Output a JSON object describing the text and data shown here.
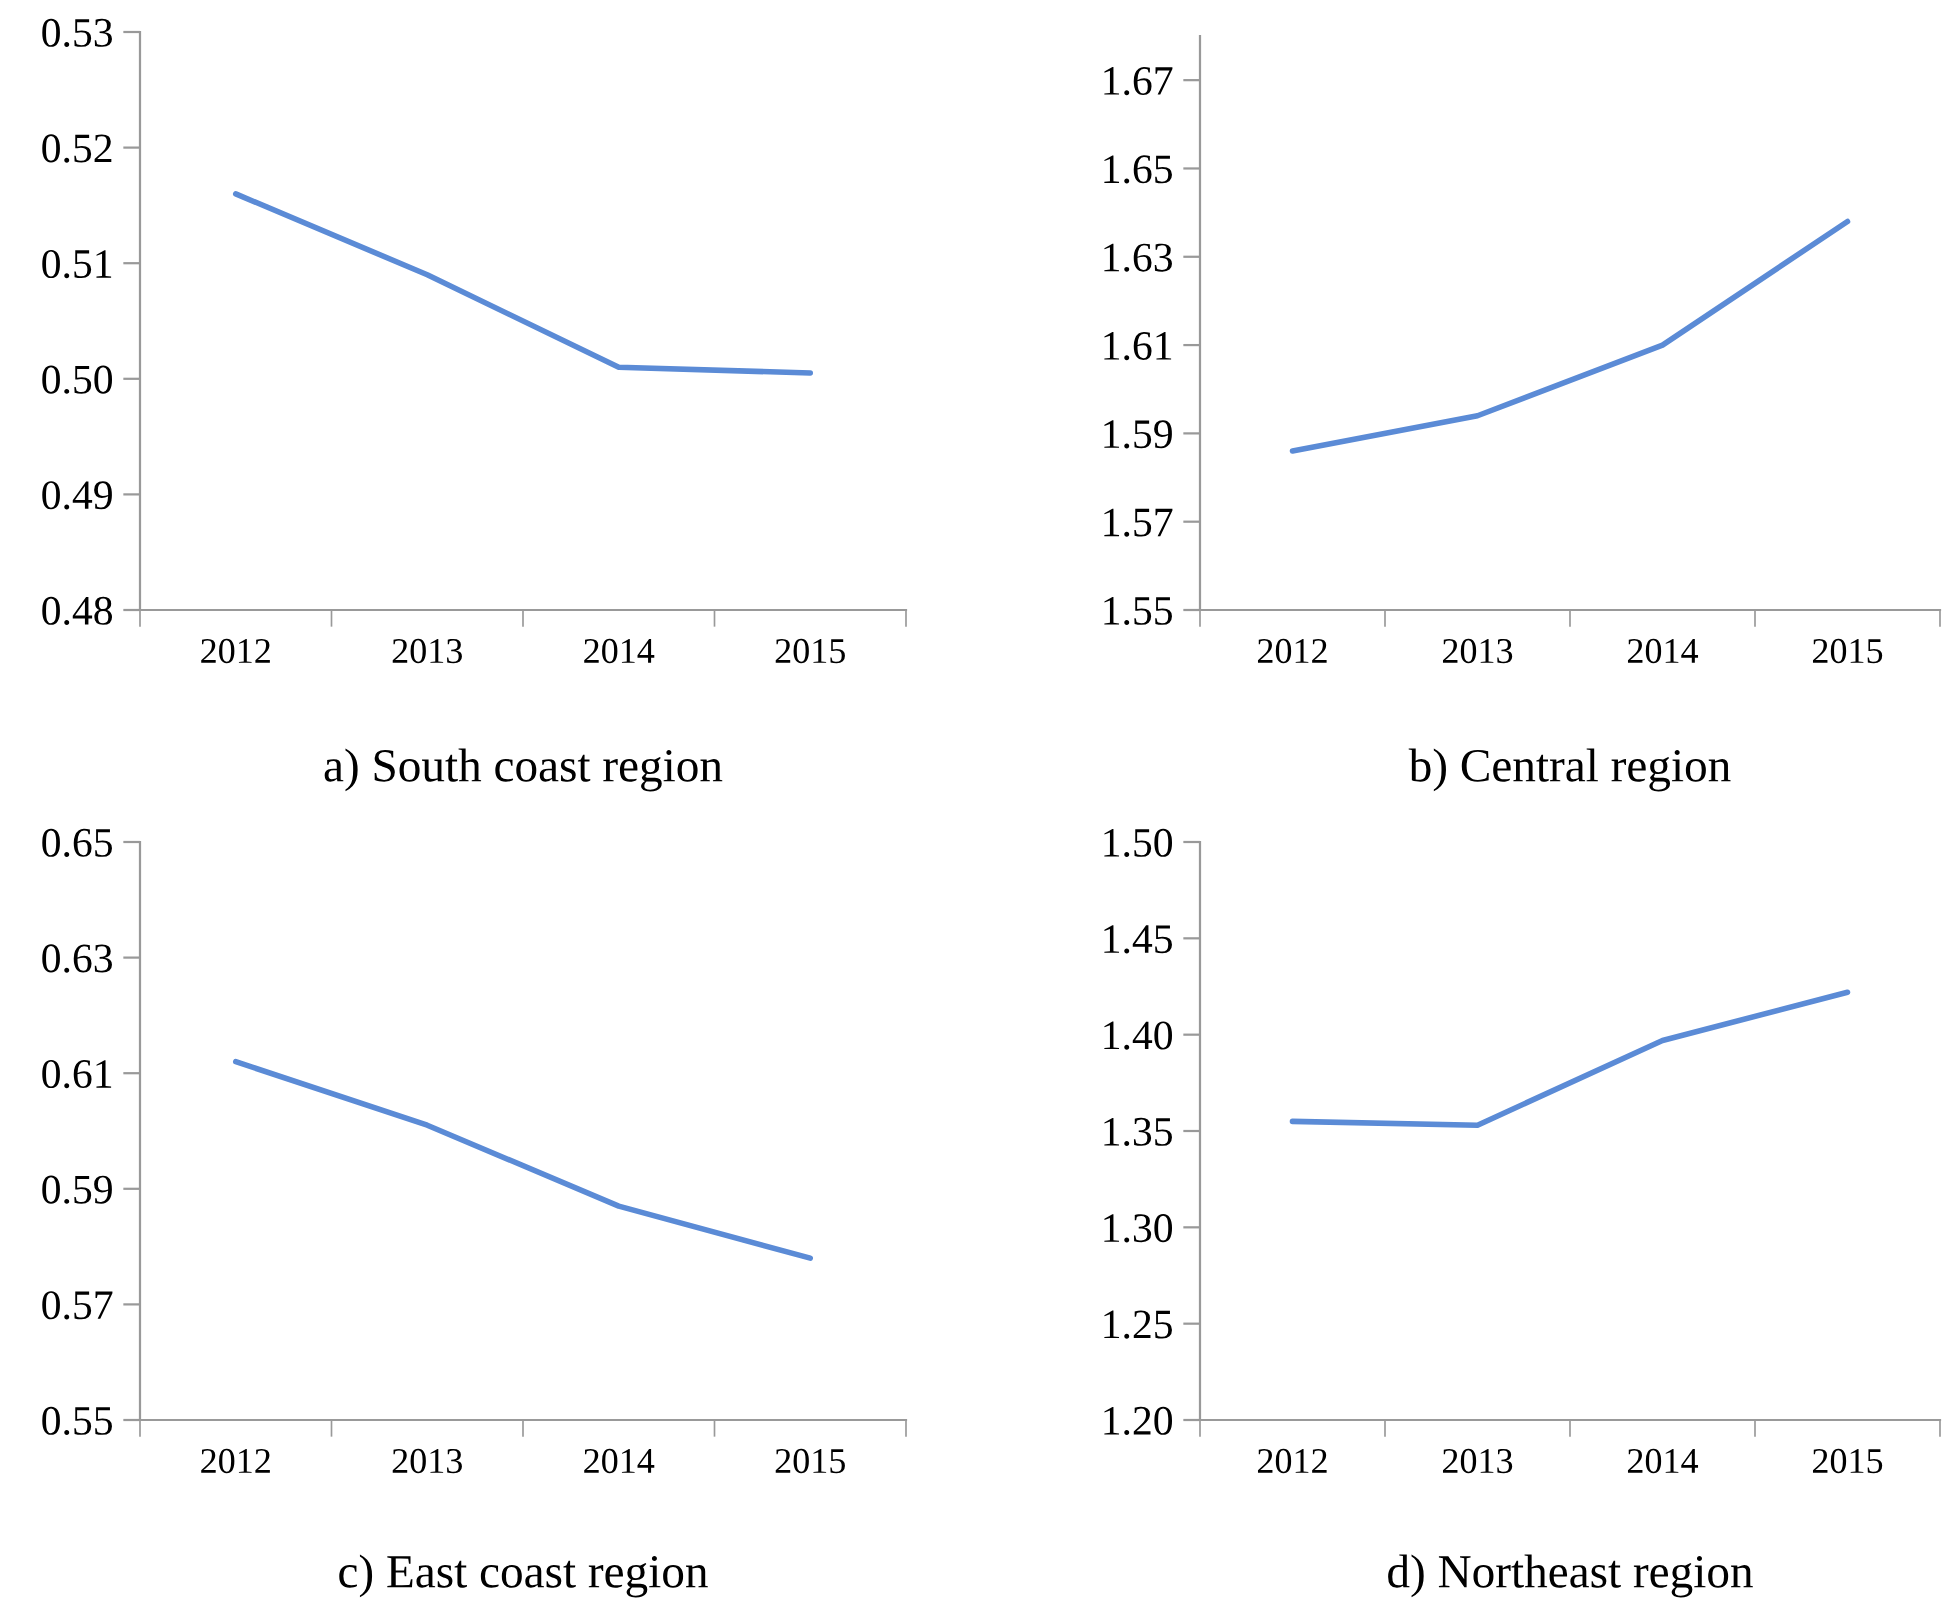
{
  "chart_data": [
    {
      "type": "line",
      "title": "a) South coast region",
      "categories": [
        "2012",
        "2013",
        "2014",
        "2015"
      ],
      "series": [
        {
          "color": "#5b8bd6",
          "values": [
            0.516,
            0.509,
            0.501,
            0.5005
          ]
        }
      ],
      "ylim": [
        0.48,
        0.53
      ],
      "yticks": [
        {
          "value": 0.48,
          "label": "0.48"
        },
        {
          "value": 0.49,
          "label": "0.49"
        },
        {
          "value": 0.5,
          "label": "0.50"
        },
        {
          "value": 0.51,
          "label": "0.51"
        },
        {
          "value": 0.52,
          "label": "0.52"
        },
        {
          "value": 0.53,
          "label": "0.53"
        }
      ],
      "grid": false
    },
    {
      "type": "line",
      "title": "b) Central region",
      "categories": [
        "2012",
        "2013",
        "2014",
        "2015"
      ],
      "series": [
        {
          "color": "#5b8bd6",
          "values": [
            1.586,
            1.594,
            1.61,
            1.638
          ]
        }
      ],
      "ylim": [
        1.55,
        1.68
      ],
      "yticks": [
        1.55,
        1.57,
        1.59,
        1.61,
        1.63,
        1.65,
        1.67
      ],
      "grid": false
    },
    {
      "type": "line",
      "title": "c) East coast region",
      "categories": [
        "2012",
        "2013",
        "2014",
        "2015"
      ],
      "series": [
        {
          "color": "#5b8bd6",
          "values": [
            0.612,
            0.601,
            0.587,
            0.578
          ]
        }
      ],
      "ylim": [
        0.55,
        0.65
      ],
      "yticks": [
        0.55,
        0.57,
        0.59,
        0.61,
        0.63,
        0.65
      ],
      "grid": false
    },
    {
      "type": "line",
      "title": "d) Northeast region",
      "categories": [
        "2012",
        "2013",
        "2014",
        "2015"
      ],
      "series": [
        {
          "color": "#5b8bd6",
          "values": [
            1.355,
            1.353,
            1.397,
            1.422
          ]
        }
      ],
      "ylim": [
        1.2,
        1.5
      ],
      "yticks": [
        {
          "value": 1.2,
          "label": "1.20"
        },
        1.25,
        {
          "value": 1.3,
          "label": "1.30"
        },
        1.35,
        {
          "value": 1.4,
          "label": "1.40"
        },
        1.45,
        {
          "value": 1.5,
          "label": "1.50"
        }
      ],
      "grid": false
    }
  ]
}
